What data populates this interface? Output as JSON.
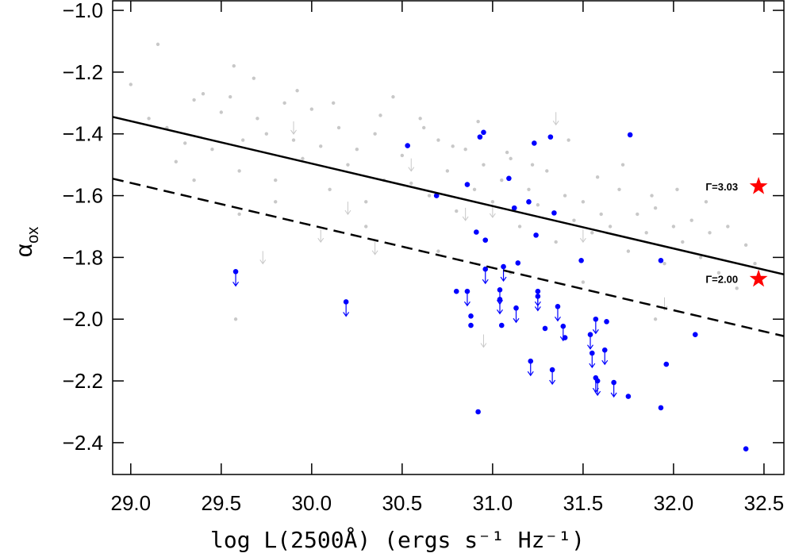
{
  "chart_data": {
    "type": "scatter",
    "xlabel": "log L(2500Å) (ergs s⁻¹ Hz⁻¹)",
    "ylabel": {
      "symbol": "α",
      "subscript": "ox"
    },
    "xlim": [
      28.9,
      32.61
    ],
    "ylim": [
      -2.503,
      -0.969
    ],
    "xticks": [
      {
        "value": 29,
        "label": "29.0"
      },
      {
        "value": 29.5,
        "label": "29.5"
      },
      {
        "value": 30,
        "label": "30.0"
      },
      {
        "value": 30.5,
        "label": "30.5"
      },
      {
        "value": 31,
        "label": "31.0"
      },
      {
        "value": 31.5,
        "label": "31.5"
      },
      {
        "value": 32,
        "label": "32.0"
      },
      {
        "value": 32.5,
        "label": "32.5"
      }
    ],
    "yticks": [
      {
        "value": -1.0,
        "label": "−1.0"
      },
      {
        "value": -1.2,
        "label": "−1.2"
      },
      {
        "value": -1.4,
        "label": "−1.4"
      },
      {
        "value": -1.6,
        "label": "−1.6"
      },
      {
        "value": -1.8,
        "label": "−1.8"
      },
      {
        "value": -2.0,
        "label": "−2.0"
      },
      {
        "value": -2.2,
        "label": "−2.2"
      },
      {
        "value": -2.4,
        "label": "−2.4"
      }
    ],
    "series": [
      {
        "color": "#c8c8c8",
        "marker": "dot",
        "x": [
          29.0,
          29.1,
          29.15,
          29.2,
          29.25,
          29.3,
          29.35,
          29.4,
          29.45,
          29.5,
          29.55,
          29.57,
          29.6,
          29.6,
          29.62,
          29.58,
          29.7,
          29.75,
          29.8,
          29.85,
          29.9,
          29.95,
          30.0,
          30.05,
          30.1,
          30.15,
          30.2,
          30.25,
          30.3,
          30.35,
          30.4,
          30.45,
          30.5,
          30.55,
          30.6,
          30.65,
          30.7,
          30.75,
          30.8,
          30.85,
          30.9,
          30.95,
          31.0,
          31.05,
          31.1,
          31.15,
          31.2,
          31.25,
          31.3,
          31.35,
          31.4,
          31.45,
          31.5,
          31.55,
          31.6,
          31.65,
          31.7,
          31.75,
          31.8,
          31.85,
          31.9,
          31.95,
          32.0,
          32.05,
          32.1,
          32.15,
          32.2,
          32.25,
          32.3,
          32.35,
          32.4,
          32.45,
          29.68,
          29.92,
          30.12,
          30.38,
          30.62,
          30.78,
          30.92,
          31.08,
          31.22,
          31.42,
          31.58,
          31.72,
          31.88,
          32.02,
          32.18,
          29.35,
          29.8,
          30.3,
          30.7,
          31.1,
          31.5,
          31.9
        ],
        "y": [
          -1.24,
          -1.35,
          -1.11,
          -1.38,
          -1.49,
          -1.43,
          -1.29,
          -1.27,
          -1.45,
          -1.33,
          -1.28,
          -1.18,
          -1.52,
          -1.66,
          -1.42,
          -2.0,
          -1.35,
          -1.4,
          -1.55,
          -1.3,
          -1.42,
          -1.48,
          -1.32,
          -1.44,
          -1.58,
          -1.38,
          -1.5,
          -1.45,
          -1.62,
          -1.4,
          -1.55,
          -1.28,
          -1.47,
          -1.56,
          -1.35,
          -1.6,
          -1.42,
          -1.52,
          -1.65,
          -1.45,
          -1.58,
          -1.5,
          -1.62,
          -1.55,
          -1.48,
          -1.7,
          -1.58,
          -1.63,
          -1.52,
          -1.75,
          -1.6,
          -1.68,
          -1.62,
          -1.72,
          -1.66,
          -1.7,
          -1.58,
          -1.78,
          -1.66,
          -1.72,
          -1.64,
          -1.82,
          -1.7,
          -1.75,
          -1.68,
          -1.8,
          -1.72,
          -1.85,
          -1.7,
          -1.9,
          -1.76,
          -1.82,
          -1.22,
          -1.26,
          -1.3,
          -1.34,
          -1.38,
          -1.44,
          -1.36,
          -1.46,
          -1.5,
          -1.42,
          -1.54,
          -1.5,
          -1.6,
          -1.58,
          -1.62,
          -1.55,
          -1.62,
          -1.7,
          -1.78,
          -1.85,
          -1.88,
          -2.0
        ]
      },
      {
        "color": "#c8c8c8",
        "marker": "arrow",
        "x": [
          29.73,
          29.9,
          30.05,
          30.2,
          30.35,
          30.55,
          30.85,
          31.0,
          31.35,
          31.5,
          31.95,
          30.95
        ],
        "y": [
          -1.8,
          -1.38,
          -1.73,
          -1.64,
          -1.77,
          -1.5,
          -1.66,
          -1.65,
          -1.35,
          -1.73,
          -1.95,
          -2.07
        ]
      },
      {
        "color": "#0000ff",
        "marker": "dot",
        "x": [
          30.53,
          30.69,
          30.86,
          30.91,
          30.93,
          30.95,
          30.96,
          30.8,
          30.88,
          30.88,
          30.92,
          31.05,
          31.09,
          31.12,
          31.14,
          31.2,
          31.23,
          31.24,
          31.29,
          31.32,
          31.34,
          31.4,
          31.49,
          31.63,
          31.75,
          31.76,
          31.93,
          31.93,
          31.96,
          32.12,
          32.4
        ],
        "y": [
          -1.438,
          -1.6,
          -1.564,
          -1.718,
          -1.41,
          -1.395,
          -1.744,
          -1.91,
          -1.99,
          -2.02,
          -2.3,
          -2.02,
          -1.544,
          -1.64,
          -1.818,
          -1.62,
          -1.43,
          -1.728,
          -2.03,
          -1.41,
          -1.656,
          -2.06,
          -1.81,
          -2.008,
          -2.25,
          -1.403,
          -1.81,
          -2.287,
          -2.146,
          -2.05,
          -2.42
        ]
      },
      {
        "color": "#0000ff",
        "marker": "dot-arrow",
        "x": [
          29.58,
          30.19,
          30.96,
          30.86,
          31.04,
          31.04,
          31.06,
          31.13,
          31.21,
          31.25,
          31.25,
          31.33,
          31.36,
          31.39,
          31.54,
          31.55,
          31.57,
          31.57,
          31.58,
          31.62,
          31.67
        ],
        "y": [
          -1.846,
          -1.944,
          -1.838,
          -1.91,
          -1.905,
          -1.936,
          -1.83,
          -1.964,
          -2.136,
          -1.91,
          -1.926,
          -2.164,
          -1.959,
          -2.023,
          -2.05,
          -2.11,
          -2.0,
          -2.19,
          -2.2,
          -2.1,
          -2.205
        ]
      },
      {
        "color": "#000000",
        "marker": "line",
        "line": "solid",
        "x": [
          28.9,
          32.61
        ],
        "y": [
          -1.345,
          -1.855
        ]
      },
      {
        "color": "#000000",
        "marker": "line",
        "line": "dashed",
        "x": [
          28.9,
          32.61
        ],
        "y": [
          -1.545,
          -2.055
        ]
      },
      {
        "color": "#ff0000",
        "marker": "star",
        "x": [
          32.47,
          32.47
        ],
        "y": [
          -1.57,
          -1.87
        ],
        "point_labels": [
          "Γ=3.03",
          "Γ=2.00"
        ]
      }
    ]
  }
}
